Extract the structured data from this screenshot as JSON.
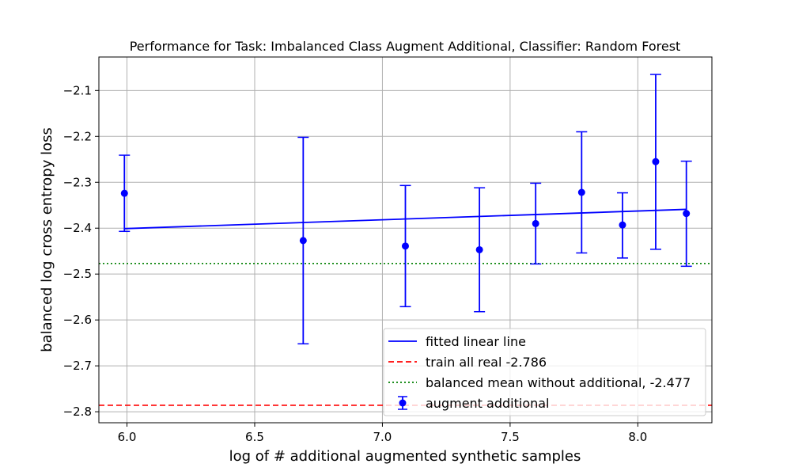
{
  "chart_data": {
    "type": "scatter",
    "title": "Performance for Task: Imbalanced Class Augment Additional, Classifier: Random Forest",
    "xlabel": "log of # additional augmented synthetic samples",
    "ylabel": "balanced log cross entropy loss",
    "xlim": [
      5.89,
      8.29
    ],
    "ylim": [
      -2.824,
      -2.027
    ],
    "xticks": [
      6.0,
      6.5,
      7.0,
      7.5,
      8.0
    ],
    "xtick_labels": [
      "6.0",
      "6.5",
      "7.0",
      "7.5",
      "8.0"
    ],
    "yticks": [
      -2.1,
      -2.2,
      -2.3,
      -2.4,
      -2.5,
      -2.6,
      -2.7,
      -2.8
    ],
    "ytick_labels": [
      "−2.1",
      "−2.2",
      "−2.3",
      "−2.4",
      "−2.5",
      "−2.6",
      "−2.7",
      "−2.8"
    ],
    "grid": true,
    "legend_position": "lower-right",
    "series": [
      {
        "name": "augment additional",
        "kind": "errorbar",
        "color": "#0000ff",
        "points": [
          {
            "x": 5.99,
            "y": -2.324,
            "err_low": -2.407,
            "err_high": -2.241
          },
          {
            "x": 6.69,
            "y": -2.427,
            "err_low": -2.652,
            "err_high": -2.202
          },
          {
            "x": 7.09,
            "y": -2.439,
            "err_low": -2.571,
            "err_high": -2.307
          },
          {
            "x": 7.38,
            "y": -2.447,
            "err_low": -2.582,
            "err_high": -2.312
          },
          {
            "x": 7.6,
            "y": -2.39,
            "err_low": -2.478,
            "err_high": -2.302
          },
          {
            "x": 7.78,
            "y": -2.322,
            "err_low": -2.454,
            "err_high": -2.19
          },
          {
            "x": 7.94,
            "y": -2.393,
            "err_low": -2.465,
            "err_high": -2.323
          },
          {
            "x": 8.07,
            "y": -2.255,
            "err_low": -2.446,
            "err_high": -2.065
          },
          {
            "x": 8.19,
            "y": -2.368,
            "err_low": -2.483,
            "err_high": -2.254
          }
        ]
      },
      {
        "name": "fitted linear line",
        "kind": "line",
        "color": "#0000ff",
        "x": [
          5.99,
          8.19
        ],
        "y": [
          -2.401,
          -2.359
        ]
      },
      {
        "name": "train all real -2.786",
        "kind": "hline",
        "color": "#ff0000",
        "style": "dashed",
        "y": -2.786
      },
      {
        "name": "balanced mean without additional, -2.477",
        "kind": "hline",
        "color": "#008000",
        "style": "dotted",
        "y": -2.477
      }
    ],
    "legend_entries": [
      {
        "label": "fitted linear line",
        "series": "fitted linear line"
      },
      {
        "label": "train all real -2.786",
        "series": "train all real -2.786"
      },
      {
        "label": "balanced mean without additional, -2.477",
        "series": "balanced mean without additional, -2.477"
      },
      {
        "label": "augment additional",
        "series": "augment additional"
      }
    ]
  }
}
